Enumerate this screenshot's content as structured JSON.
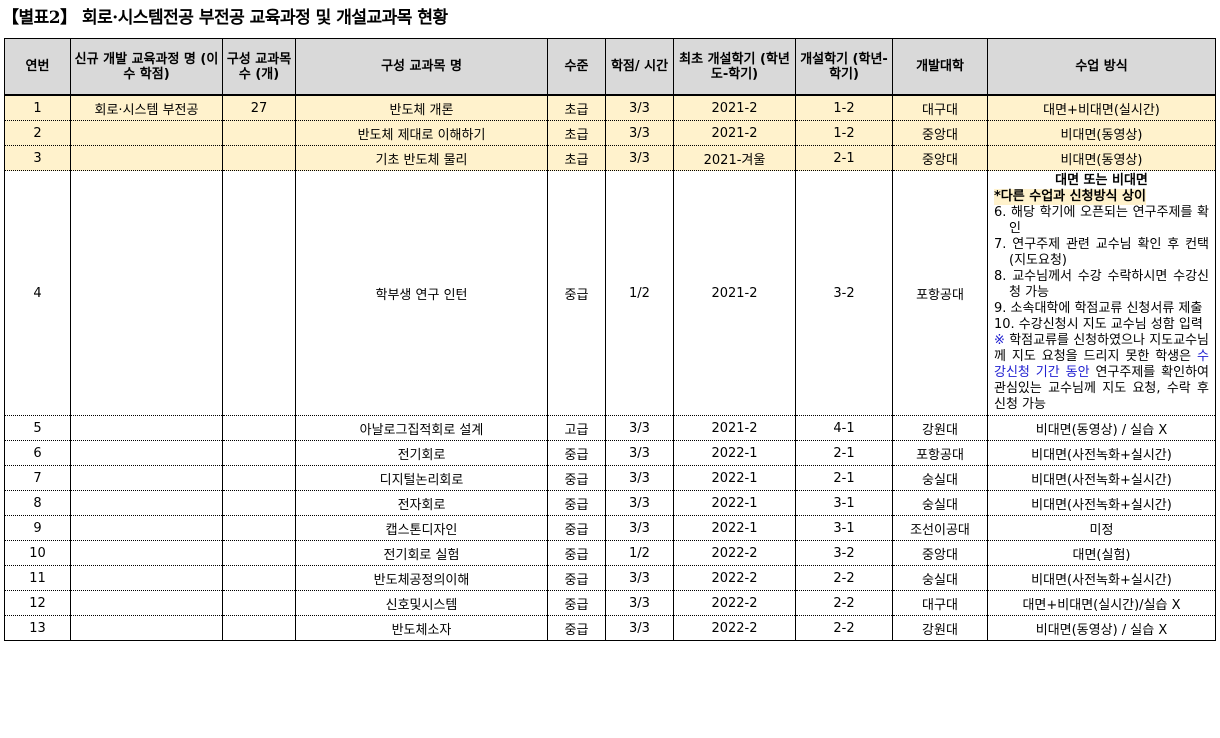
{
  "title": "【별표2】 회로·시스템전공 부전공 교육과정 및 개설교과목 현황",
  "headers": [
    "연번",
    "신규 개발 교육과정 명 (이수 학점)",
    "구성 교과목 수 (개)",
    "구성 교과목 명",
    "수준",
    "학점/ 시간",
    "최초 개설학기 (학년도-학기)",
    "개설학기 (학년-학기)",
    "개발대학",
    "수업 방식"
  ],
  "rows": [
    {
      "no": "1",
      "program": "회로·시스템 부전공",
      "count": "27",
      "course": "반도체 개론",
      "level": "초급",
      "credit": "3/3",
      "first": "2021-2",
      "term": "1-2",
      "univ": "대구대",
      "method": "대면+비대면(실시간)"
    },
    {
      "no": "2",
      "program": "",
      "count": "",
      "course": "반도체 제대로 이해하기",
      "level": "초급",
      "credit": "3/3",
      "first": "2021-2",
      "term": "1-2",
      "univ": "중앙대",
      "method": "비대면(동영상)"
    },
    {
      "no": "3",
      "program": "",
      "count": "",
      "course": "기초 반도체 물리",
      "level": "초급",
      "credit": "3/3",
      "first": "2021-겨울",
      "term": "2-1",
      "univ": "중앙대",
      "method": "비대면(동영상)"
    },
    {
      "no": "4",
      "program": "",
      "count": "",
      "course": "학부생 연구 인턴",
      "level": "중급",
      "credit": "1/2",
      "first": "2021-2",
      "term": "3-2",
      "univ": "포항공대",
      "method": ""
    },
    {
      "no": "5",
      "program": "",
      "count": "",
      "course": "아날로그집적회로 설계",
      "level": "고급",
      "credit": "3/3",
      "first": "2021-2",
      "term": "4-1",
      "univ": "강원대",
      "method": "비대면(동영상) / 실습 X"
    },
    {
      "no": "6",
      "program": "",
      "count": "",
      "course": "전기회로",
      "level": "중급",
      "credit": "3/3",
      "first": "2022-1",
      "term": "2-1",
      "univ": "포항공대",
      "method": "비대면(사전녹화+실시간)"
    },
    {
      "no": "7",
      "program": "",
      "count": "",
      "course": "디지털논리회로",
      "level": "중급",
      "credit": "3/3",
      "first": "2022-1",
      "term": "2-1",
      "univ": "숭실대",
      "method": "비대면(사전녹화+실시간)"
    },
    {
      "no": "8",
      "program": "",
      "count": "",
      "course": "전자회로",
      "level": "중급",
      "credit": "3/3",
      "first": "2022-1",
      "term": "3-1",
      "univ": "숭실대",
      "method": "비대면(사전녹화+실시간)"
    },
    {
      "no": "9",
      "program": "",
      "count": "",
      "course": "캡스톤디자인",
      "level": "중급",
      "credit": "3/3",
      "first": "2022-1",
      "term": "3-1",
      "univ": "조선이공대",
      "method": "미정"
    },
    {
      "no": "10",
      "program": "",
      "count": "",
      "course": "전기회로 실험",
      "level": "중급",
      "credit": "1/2",
      "first": "2022-2",
      "term": "3-2",
      "univ": "중앙대",
      "method": "대면(실험)"
    },
    {
      "no": "11",
      "program": "",
      "count": "",
      "course": "반도체공정의이해",
      "level": "중급",
      "credit": "3/3",
      "first": "2022-2",
      "term": "2-2",
      "univ": "숭실대",
      "method": "비대면(사전녹화+실시간)"
    },
    {
      "no": "12",
      "program": "",
      "count": "",
      "course": "신호및시스템",
      "level": "중급",
      "credit": "3/3",
      "first": "2022-2",
      "term": "2-2",
      "univ": "대구대",
      "method": "대면+비대면(실시간)/실습 X"
    },
    {
      "no": "13",
      "program": "",
      "count": "",
      "course": "반도체소자",
      "level": "중급",
      "credit": "3/3",
      "first": "2022-2",
      "term": "2-2",
      "univ": "강원대",
      "method": "비대면(동영상) / 실습 X"
    }
  ],
  "row4_method": {
    "heading": "대면 또는 비대면",
    "note": "*다른 수업과 신청방식 상이",
    "steps": [
      "6. 해당 학기에 오픈되는 연구주제를 확인",
      "7. 연구주제 관련 교수님 확인 후 컨택(지도요청)",
      "8. 교수님께서 수강 수락하시면 수강신청 가능",
      "9. 소속대학에 학점교류 신청서류 제출",
      "10. 수강신청시 지도 교수님 성함 입력"
    ],
    "remark_mark": "※",
    "remark_a": " 학점교류를 신청하였으나 지도교수님께 지도 요청을 드리지 못한 학생은 ",
    "remark_blue": "수강신청 기간 동안",
    "remark_b": " 연구주제를 확인하여 관심있는 교수님께 지도 요청, 수락 후 신청 가능"
  },
  "colors": {
    "header_bg": "#d9d9d9",
    "highlight_bg": "#fff2cc",
    "remark_blue": "#1f1fd0"
  }
}
